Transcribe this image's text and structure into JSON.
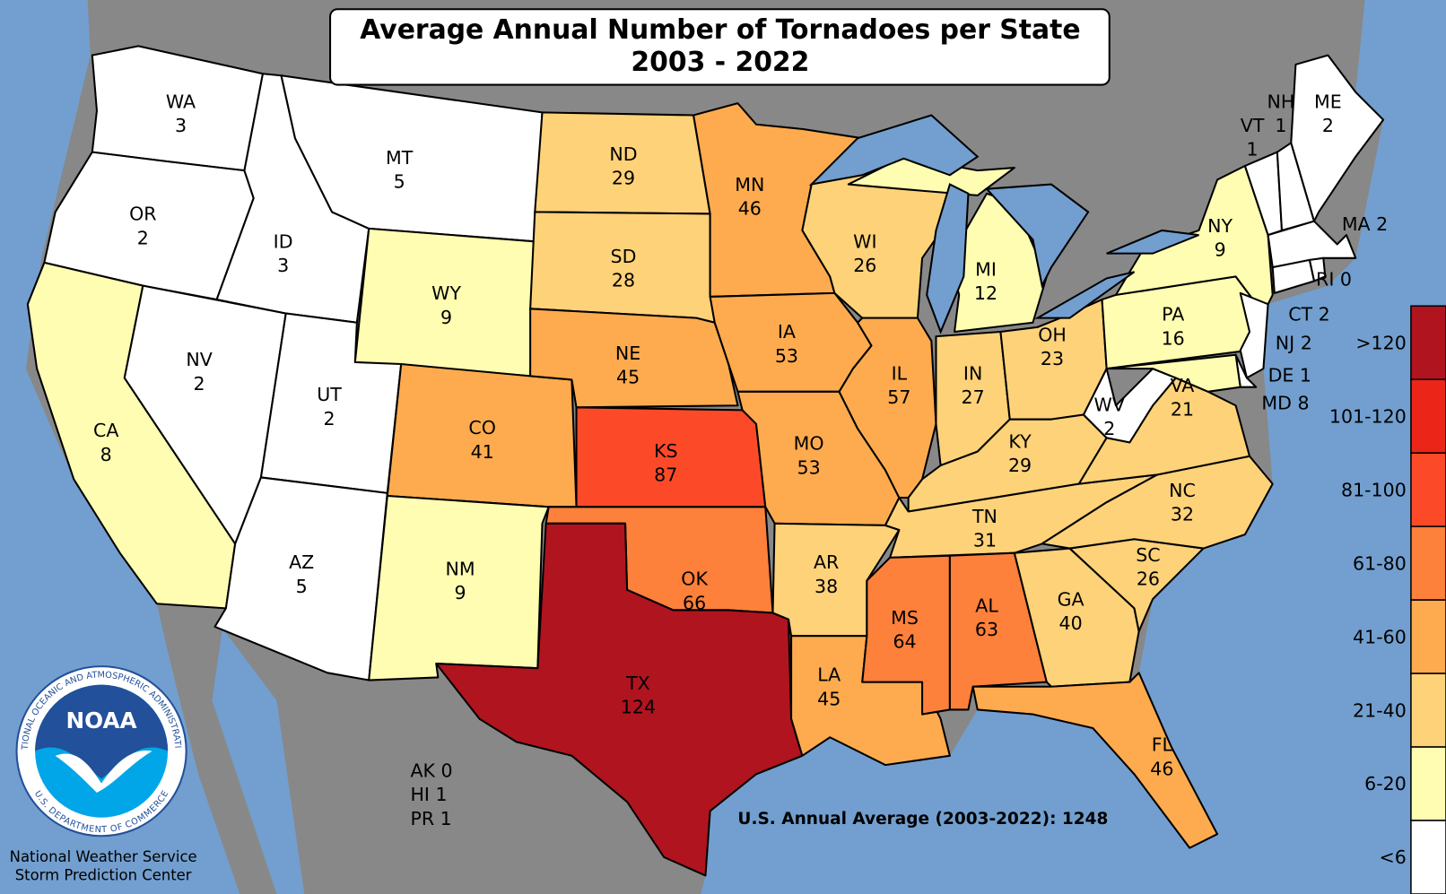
{
  "title": {
    "line1": "Average Annual Number of Tornadoes per State",
    "line2": "2003 - 2022"
  },
  "colors": {
    "ocean": "#729fcf",
    "land": "#888888",
    "border": "#000000"
  },
  "legend": [
    {
      "label": ">120",
      "min": 121,
      "color": "#b0141f"
    },
    {
      "label": "101-120",
      "min": 101,
      "color": "#ec2519"
    },
    {
      "label": "81-100",
      "min": 81,
      "color": "#fc4a29"
    },
    {
      "label": "61-80",
      "min": 61,
      "color": "#fd803b"
    },
    {
      "label": "41-60",
      "min": 41,
      "color": "#fdab4e"
    },
    {
      "label": "21-40",
      "min": 21,
      "color": "#fed279"
    },
    {
      "label": "6-20",
      "min": 6,
      "color": "#fffdb2"
    },
    {
      "label": "<6",
      "min": 0,
      "color": "#ffffff"
    }
  ],
  "states": [
    {
      "abbr": "WA",
      "value": 3
    },
    {
      "abbr": "OR",
      "value": 2
    },
    {
      "abbr": "CA",
      "value": 8
    },
    {
      "abbr": "NV",
      "value": 2
    },
    {
      "abbr": "ID",
      "value": 3
    },
    {
      "abbr": "MT",
      "value": 5
    },
    {
      "abbr": "WY",
      "value": 9
    },
    {
      "abbr": "UT",
      "value": 2
    },
    {
      "abbr": "AZ",
      "value": 5
    },
    {
      "abbr": "CO",
      "value": 41
    },
    {
      "abbr": "NM",
      "value": 9
    },
    {
      "abbr": "ND",
      "value": 29
    },
    {
      "abbr": "SD",
      "value": 28
    },
    {
      "abbr": "NE",
      "value": 45
    },
    {
      "abbr": "KS",
      "value": 87
    },
    {
      "abbr": "OK",
      "value": 66
    },
    {
      "abbr": "TX",
      "value": 124
    },
    {
      "abbr": "MN",
      "value": 46
    },
    {
      "abbr": "IA",
      "value": 53
    },
    {
      "abbr": "MO",
      "value": 53
    },
    {
      "abbr": "AR",
      "value": 38
    },
    {
      "abbr": "LA",
      "value": 45
    },
    {
      "abbr": "WI",
      "value": 26
    },
    {
      "abbr": "IL",
      "value": 57
    },
    {
      "abbr": "MI",
      "value": 12
    },
    {
      "abbr": "IN",
      "value": 27
    },
    {
      "abbr": "OH",
      "value": 23
    },
    {
      "abbr": "KY",
      "value": 29
    },
    {
      "abbr": "TN",
      "value": 31
    },
    {
      "abbr": "MS",
      "value": 64
    },
    {
      "abbr": "AL",
      "value": 63
    },
    {
      "abbr": "GA",
      "value": 40
    },
    {
      "abbr": "FL",
      "value": 46
    },
    {
      "abbr": "SC",
      "value": 26
    },
    {
      "abbr": "NC",
      "value": 32
    },
    {
      "abbr": "VA",
      "value": 21
    },
    {
      "abbr": "WV",
      "value": 2
    },
    {
      "abbr": "PA",
      "value": 16
    },
    {
      "abbr": "NY",
      "value": 9
    },
    {
      "abbr": "VT",
      "value": 1
    },
    {
      "abbr": "NH",
      "value": 1
    },
    {
      "abbr": "ME",
      "value": 2
    },
    {
      "abbr": "MA",
      "value": 2
    },
    {
      "abbr": "RI",
      "value": 0
    },
    {
      "abbr": "CT",
      "value": 2
    },
    {
      "abbr": "NJ",
      "value": 2
    },
    {
      "abbr": "DE",
      "value": 1
    },
    {
      "abbr": "MD",
      "value": 8
    }
  ],
  "other": [
    {
      "abbr": "AK",
      "value": 0
    },
    {
      "abbr": "HI",
      "value": 1
    },
    {
      "abbr": "PR",
      "value": 1
    }
  ],
  "annual_average": "U.S. Annual Average (2003-2022): 1248",
  "credit": {
    "line1": "National Weather Service",
    "line2": "Storm Prediction Center"
  },
  "logo": {
    "text": "NOAA",
    "ring_top": "NATIONAL OCEANIC AND ATMOSPHERIC ADMINISTRATION",
    "ring_bottom": "U.S. DEPARTMENT OF COMMERCE",
    "blue": "#22509a",
    "cyan": "#00a6e8"
  }
}
